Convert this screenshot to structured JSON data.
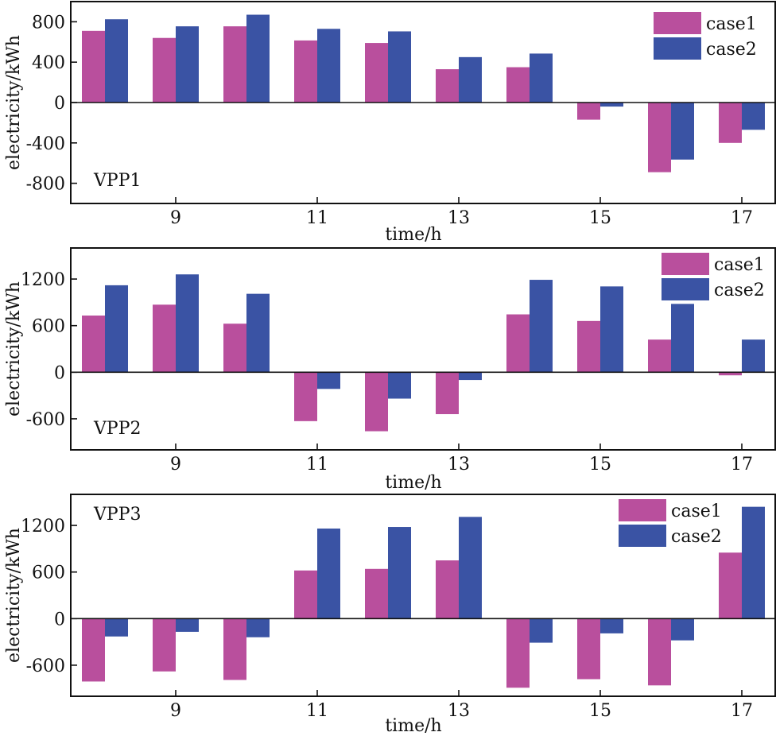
{
  "colors": {
    "case1": "#b94f9d",
    "case2": "#3a53a4"
  },
  "chart_data": [
    {
      "type": "bar",
      "panel_label": "VPP1",
      "xlabel": "time/h",
      "ylabel": "electricity/kWh",
      "x": [
        8,
        9,
        10,
        11,
        12,
        13,
        14,
        15,
        16,
        17
      ],
      "xticks": [
        "9",
        "11",
        "13",
        "15",
        "17"
      ],
      "ylim": [
        -1000,
        1000
      ],
      "yticks": [
        "800",
        "400",
        "0",
        "-400",
        "-800"
      ],
      "series": [
        {
          "name": "case1",
          "values": [
            710,
            640,
            755,
            615,
            590,
            330,
            350,
            -170,
            -690,
            -400
          ]
        },
        {
          "name": "case2",
          "values": [
            825,
            755,
            870,
            730,
            705,
            450,
            485,
            -40,
            -565,
            -270
          ]
        }
      ],
      "legend": "top-right"
    },
    {
      "type": "bar",
      "panel_label": "VPP2",
      "xlabel": "time/h",
      "ylabel": "electricity/kWh",
      "x": [
        8,
        9,
        10,
        11,
        12,
        13,
        14,
        15,
        16,
        17
      ],
      "xticks": [
        "9",
        "11",
        "13",
        "15",
        "17"
      ],
      "ylim": [
        -1000,
        1600
      ],
      "yticks": [
        "1200",
        "600",
        "0",
        "-600"
      ],
      "series": [
        {
          "name": "case1",
          "values": [
            730,
            870,
            625,
            -630,
            -760,
            -540,
            745,
            660,
            420,
            -40
          ]
        },
        {
          "name": "case2",
          "values": [
            1120,
            1260,
            1010,
            -215,
            -340,
            -100,
            1190,
            1105,
            880,
            420
          ]
        }
      ],
      "legend": "top-right"
    },
    {
      "type": "bar",
      "panel_label": "VPP3",
      "xlabel": "time/h",
      "ylabel": "electricity/kWh",
      "x": [
        8,
        9,
        10,
        11,
        12,
        13,
        14,
        15,
        16,
        17
      ],
      "xticks": [
        "9",
        "11",
        "13",
        "15",
        "17"
      ],
      "ylim": [
        -1000,
        1600
      ],
      "yticks": [
        "1200",
        "600",
        "0",
        "-600"
      ],
      "series": [
        {
          "name": "case1",
          "values": [
            -810,
            -680,
            -790,
            620,
            640,
            750,
            -890,
            -780,
            -860,
            850
          ]
        },
        {
          "name": "case2",
          "values": [
            -230,
            -170,
            -240,
            1160,
            1180,
            1310,
            -310,
            -190,
            -280,
            1440
          ]
        }
      ],
      "legend": "top-right"
    }
  ]
}
